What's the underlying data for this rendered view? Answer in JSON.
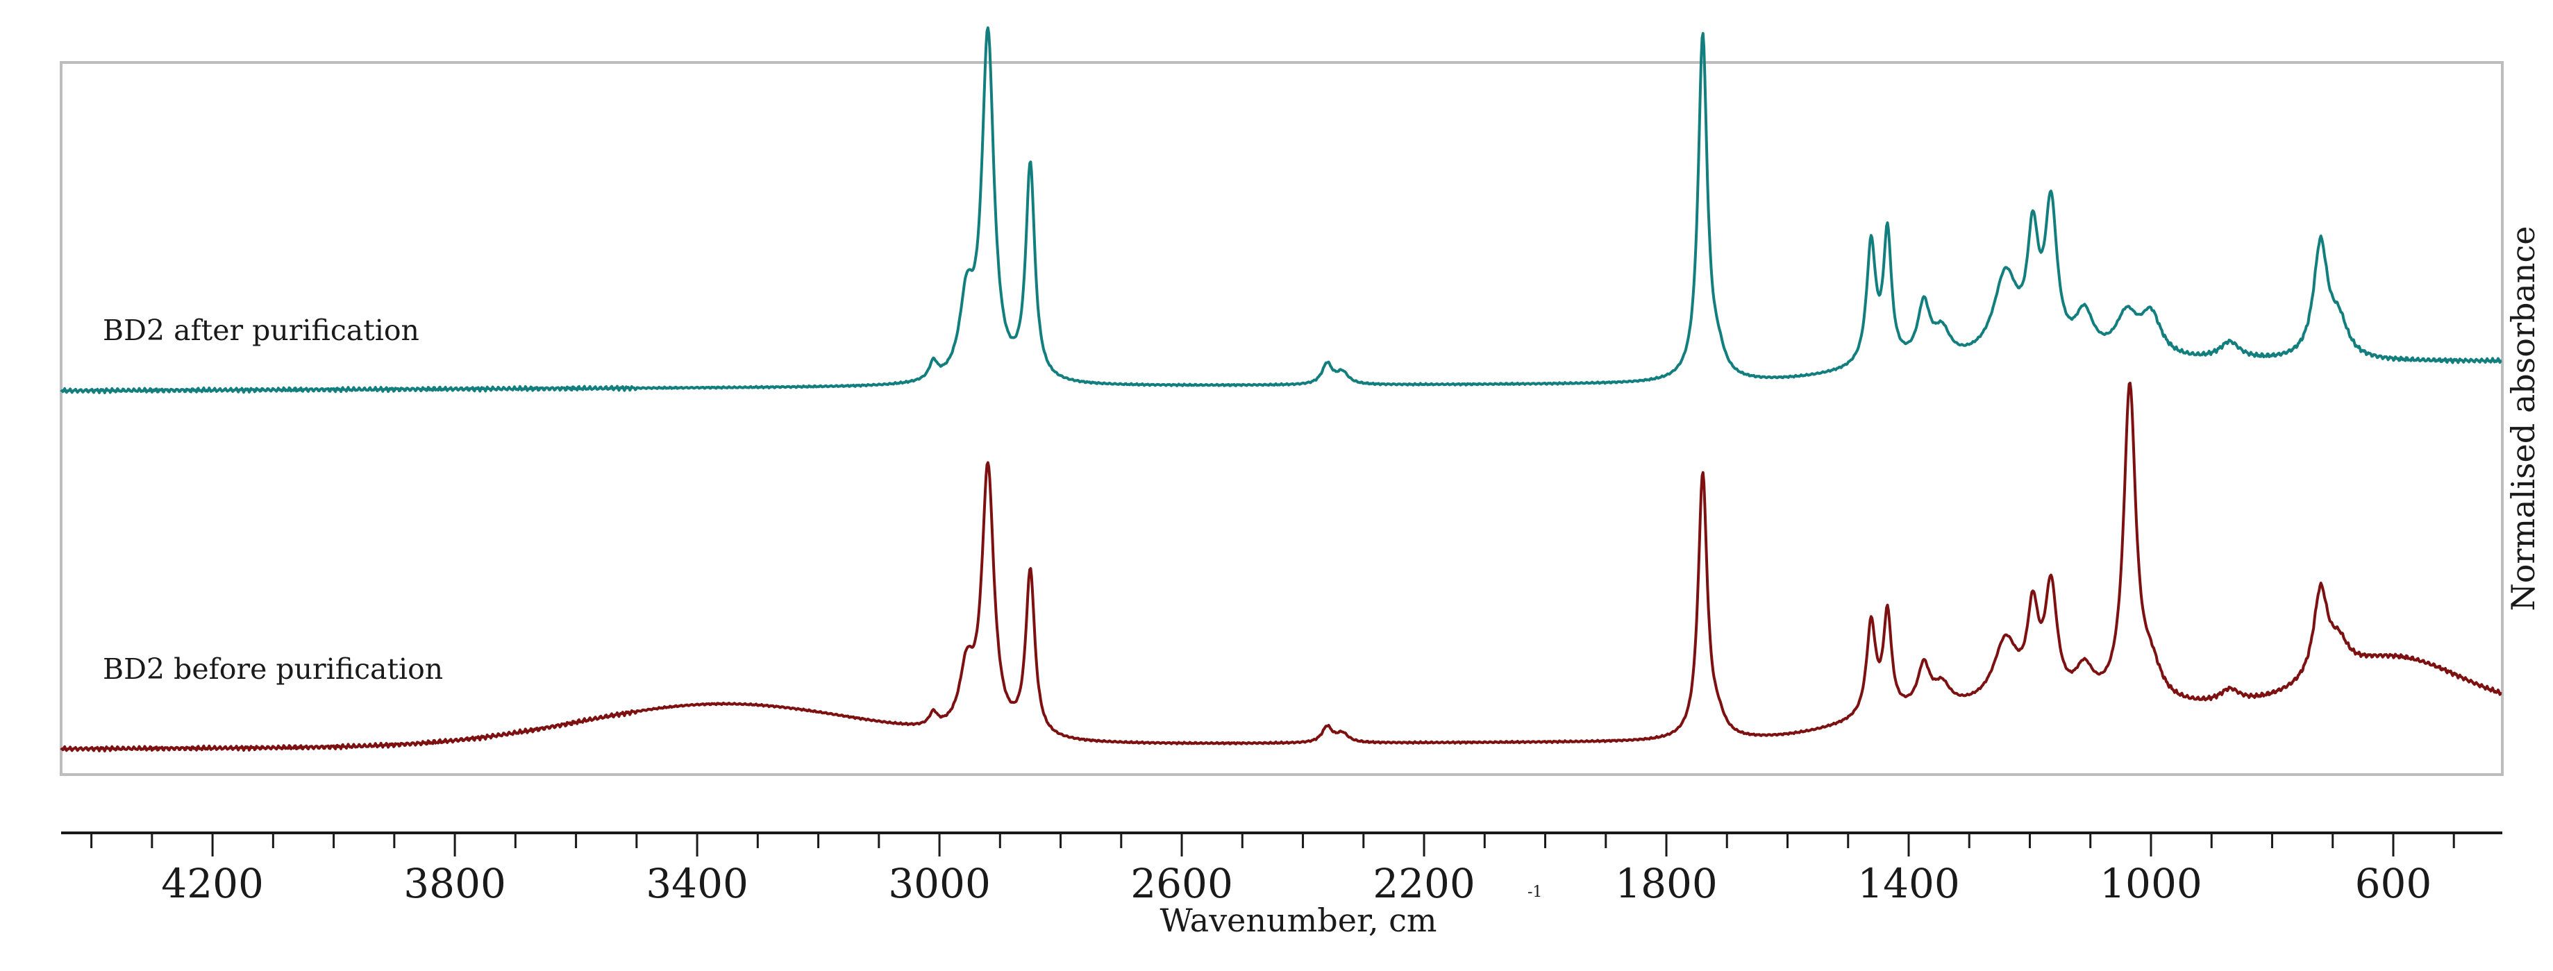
{
  "chart_data": {
    "type": "line",
    "xlabel": "Wavenumber, cm",
    "xlabel_superscript": "-1",
    "ylabel": "Normalised absorbance",
    "x_reversed": true,
    "xlim": [
      4450,
      420
    ],
    "x_ticks": [
      4200,
      3800,
      3400,
      3000,
      2600,
      2200,
      1800,
      1400,
      1000,
      600
    ],
    "minor_tick_step": 100,
    "y_ticks_shown": false,
    "grid": false,
    "series": [
      {
        "name": "BD2 after purification",
        "color": "#137e7e",
        "peaks": [
          {
            "x": 3010,
            "y": 0.05
          },
          {
            "x": 2955,
            "y": 0.3
          },
          {
            "x": 2920,
            "y": 0.92
          },
          {
            "x": 2850,
            "y": 0.62
          },
          {
            "x": 2360,
            "y": 0.06
          },
          {
            "x": 2335,
            "y": 0.03
          },
          {
            "x": 1740,
            "y": 1.0
          },
          {
            "x": 1462,
            "y": 0.38
          },
          {
            "x": 1435,
            "y": 0.4
          },
          {
            "x": 1375,
            "y": 0.23
          },
          {
            "x": 1240,
            "y": 0.36
          },
          {
            "x": 1195,
            "y": 0.5
          },
          {
            "x": 1165,
            "y": 0.58
          },
          {
            "x": 1100,
            "y": 0.21
          },
          {
            "x": 1040,
            "y": 0.23
          },
          {
            "x": 720,
            "y": 0.43
          }
        ]
      },
      {
        "name": "BD2 before purification",
        "color": "#7d1010",
        "peaks": [
          {
            "x": 3360,
            "y": 0.12
          },
          {
            "x": 3010,
            "y": 0.04
          },
          {
            "x": 2955,
            "y": 0.28
          },
          {
            "x": 2920,
            "y": 0.8
          },
          {
            "x": 2850,
            "y": 0.55
          },
          {
            "x": 2360,
            "y": 0.02
          },
          {
            "x": 1740,
            "y": 0.76
          },
          {
            "x": 1462,
            "y": 0.4
          },
          {
            "x": 1435,
            "y": 0.42
          },
          {
            "x": 1375,
            "y": 0.25
          },
          {
            "x": 1240,
            "y": 0.34
          },
          {
            "x": 1195,
            "y": 0.45
          },
          {
            "x": 1165,
            "y": 0.5
          },
          {
            "x": 1110,
            "y": 0.25
          },
          {
            "x": 1030,
            "y": 0.9
          },
          {
            "x": 720,
            "y": 0.5
          },
          {
            "x": 600,
            "y": 0.32
          }
        ]
      }
    ]
  }
}
